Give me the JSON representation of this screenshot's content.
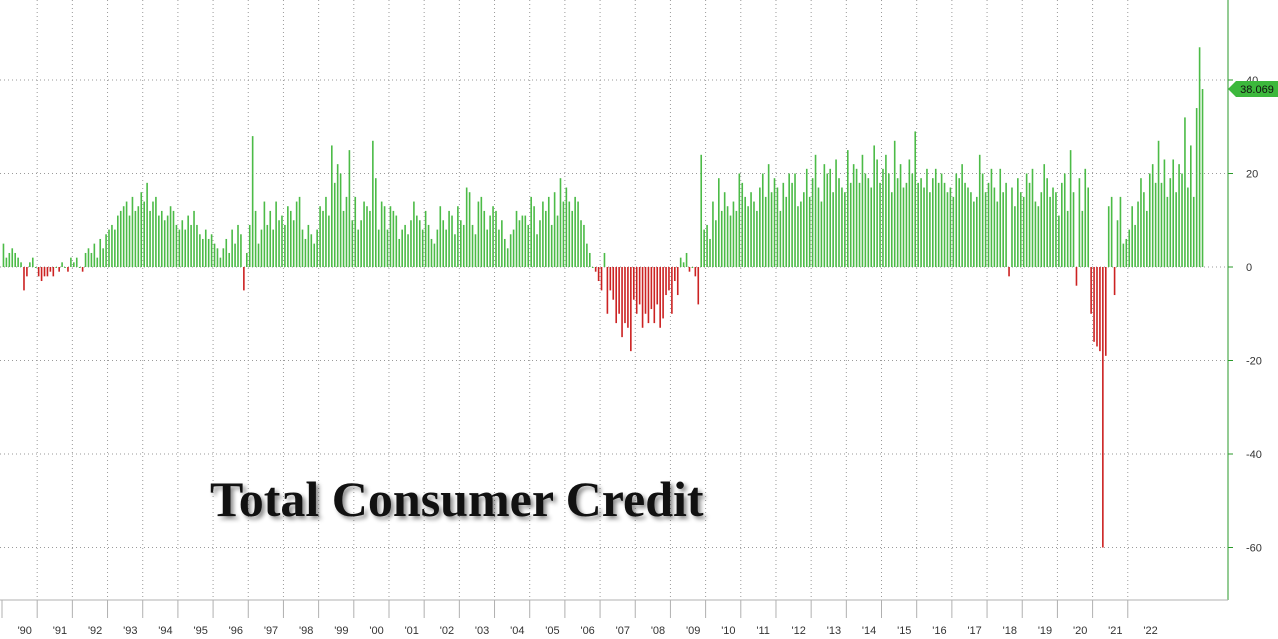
{
  "chart_data": {
    "type": "bar",
    "title": "Total Consumer Credit",
    "xlabel": "",
    "ylabel": "",
    "ylim": [
      -72,
      57
    ],
    "y_ticks": [
      40,
      20,
      0,
      -20,
      -40,
      -60
    ],
    "x_tick_labels": [
      "'90",
      "'91",
      "'92",
      "'93",
      "'94",
      "'95",
      "'96",
      "'97",
      "'98",
      "'99",
      "'00",
      "'01",
      "'02",
      "'03",
      "'04",
      "'05",
      "'06",
      "'07",
      "'08",
      "'09",
      "'10",
      "'11",
      "'12",
      "'13",
      "'14",
      "'15",
      "'16",
      "'17",
      "'18",
      "'19",
      "'20",
      "'21",
      "'22"
    ],
    "last_value_label": "38.069",
    "grid": true,
    "colors": {
      "positive": "#4cbb47",
      "negative": "#cc2222",
      "badge": "#3cb83c",
      "axis": "#2a9a2a"
    },
    "series": [
      {
        "frequency": "monthly",
        "start": "1990-01",
        "values": [
          5,
          2,
          3,
          4,
          3,
          2,
          1,
          -5,
          -2,
          1,
          2,
          0,
          -2,
          -3,
          -2,
          -2,
          -1,
          -2,
          0,
          -1,
          1,
          0,
          -1,
          2,
          1,
          2,
          0,
          -1,
          3,
          4,
          3,
          5,
          2,
          6,
          4,
          7,
          8,
          9,
          8,
          11,
          12,
          13,
          14,
          11,
          15,
          12,
          13,
          16,
          14,
          18,
          12,
          14,
          15,
          11,
          12,
          10,
          11,
          13,
          12,
          9,
          8,
          10,
          8,
          11,
          9,
          12,
          9,
          7,
          6,
          8,
          6,
          7,
          5,
          4,
          2,
          4,
          6,
          3,
          8,
          5,
          9,
          7,
          -5,
          3,
          9,
          28,
          12,
          5,
          8,
          14,
          9,
          12,
          8,
          14,
          10,
          11,
          9,
          13,
          12,
          10,
          14,
          15,
          8,
          6,
          9,
          7,
          5,
          8,
          13,
          12,
          15,
          11,
          26,
          18,
          22,
          20,
          12,
          15,
          25,
          10,
          15,
          8,
          10,
          14,
          13,
          12,
          27,
          19,
          8,
          14,
          13,
          8,
          13,
          12,
          11,
          6,
          8,
          9,
          7,
          10,
          14,
          11,
          10,
          8,
          12,
          9,
          6,
          5,
          8,
          13,
          10,
          8,
          12,
          11,
          7,
          13,
          10,
          9,
          17,
          16,
          9,
          7,
          14,
          15,
          12,
          8,
          11,
          13,
          12,
          8,
          10,
          6,
          4,
          7,
          8,
          12,
          10,
          11,
          11,
          9,
          15,
          13,
          7,
          10,
          14,
          12,
          15,
          9,
          16,
          11,
          19,
          14,
          17,
          14,
          12,
          15,
          14,
          10,
          9,
          5,
          3,
          0,
          -1,
          -3,
          -5,
          3,
          -10,
          -5,
          -7,
          -12,
          -10,
          -15,
          -12,
          -13,
          -18,
          -7,
          -10,
          -8,
          -13,
          -10,
          -12,
          -9,
          -12,
          -8,
          -13,
          -11,
          -6,
          -5,
          -10,
          -3,
          -6,
          2,
          1,
          3,
          -1,
          0,
          -2,
          -8,
          24,
          8,
          9,
          6,
          14,
          10,
          19,
          12,
          16,
          13,
          11,
          14,
          12,
          20,
          18,
          15,
          13,
          16,
          14,
          12,
          17,
          20,
          15,
          22,
          16,
          19,
          17,
          12,
          18,
          15,
          20,
          18,
          20,
          13,
          14,
          16,
          21,
          15,
          19,
          24,
          17,
          14,
          22,
          20,
          21,
          16,
          23,
          19,
          17,
          16,
          25,
          18,
          22,
          21,
          18,
          24,
          20,
          19,
          17,
          26,
          23,
          18,
          21,
          24,
          20,
          16,
          27,
          19,
          22,
          17,
          18,
          23,
          20,
          29,
          18,
          19,
          17,
          21,
          16,
          19,
          21,
          18,
          20,
          18,
          16,
          17,
          15,
          20,
          19,
          22,
          18,
          17,
          16,
          14,
          15,
          24,
          20,
          16,
          18,
          21,
          17,
          14,
          21,
          16,
          18,
          -2,
          17,
          13,
          19,
          16,
          15,
          20,
          18,
          21,
          14,
          13,
          16,
          22,
          19,
          15,
          17,
          16,
          11,
          18,
          20,
          12,
          25,
          16,
          -4,
          19,
          12,
          21,
          17,
          -10,
          -16,
          -17,
          -18,
          -60,
          -19,
          13,
          15,
          -6,
          10,
          15,
          5,
          6,
          8,
          13,
          9,
          14,
          19,
          16,
          12,
          20,
          22,
          18,
          27,
          18,
          23,
          15,
          19,
          23,
          16,
          22,
          20,
          32,
          17,
          26,
          15,
          34,
          47,
          38.069
        ]
      }
    ]
  }
}
